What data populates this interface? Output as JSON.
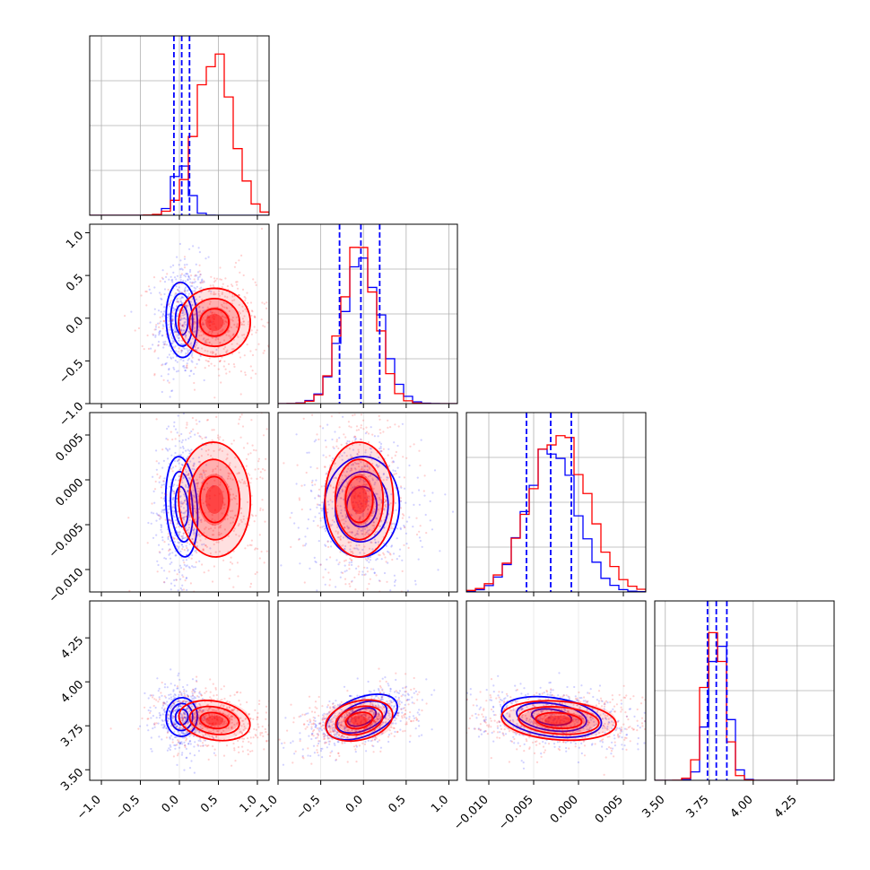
{
  "chart_data": {
    "type": "corner",
    "title": "",
    "grid": true,
    "colors": {
      "series_a": "#0000ff",
      "series_b": "#ff0000",
      "grid": "#b0b0b0",
      "frame": "#000000"
    },
    "series": [
      {
        "color": "#0000ff"
      },
      {
        "color": "#ff0000"
      }
    ],
    "parameters": [
      {
        "range": [
          -1.15,
          1.15
        ],
        "ticks": [
          -1.0,
          -0.5,
          0.0,
          0.5,
          1.0
        ],
        "tick_labels": [
          "−1.0",
          "−0.5",
          "0.0",
          "0.5",
          "1.0"
        ],
        "blue": {
          "center": 0.03,
          "sd": 0.1
        },
        "red": {
          "center": 0.45,
          "sd": 0.23
        },
        "quantiles": [
          -0.07,
          0.03,
          0.13
        ]
      },
      {
        "range": [
          -1.0,
          1.1
        ],
        "ticks": [
          -1.0,
          -0.5,
          0.0,
          0.5,
          1.0
        ],
        "tick_labels": [
          "−1.0",
          "−0.5",
          "0.0",
          "0.5",
          "1.0"
        ],
        "blue": {
          "center": -0.02,
          "sd": 0.22
        },
        "red": {
          "center": -0.05,
          "sd": 0.2
        },
        "quantiles": [
          -0.28,
          -0.03,
          0.19
        ]
      },
      {
        "range": [
          -0.0125,
          0.0075
        ],
        "ticks": [
          -0.01,
          -0.005,
          0.0,
          0.005
        ],
        "tick_labels": [
          "−0.010",
          "−0.005",
          "0.000",
          "0.005"
        ],
        "blue": {
          "center": -0.003,
          "sd": 0.0028
        },
        "red": {
          "center": -0.0022,
          "sd": 0.0032
        },
        "quantiles": [
          -0.0058,
          -0.0031,
          -0.0008
        ]
      },
      {
        "range": [
          3.44,
          4.46
        ],
        "ticks": [
          3.5,
          3.75,
          4.0,
          4.25
        ],
        "tick_labels": [
          "3.50",
          "3.75",
          "4.00",
          "4.25"
        ],
        "blue": {
          "center": 3.8,
          "sd": 0.055
        },
        "red": {
          "center": 3.78,
          "sd": 0.055
        },
        "quantiles": [
          3.74,
          3.79,
          3.85
        ]
      }
    ]
  }
}
